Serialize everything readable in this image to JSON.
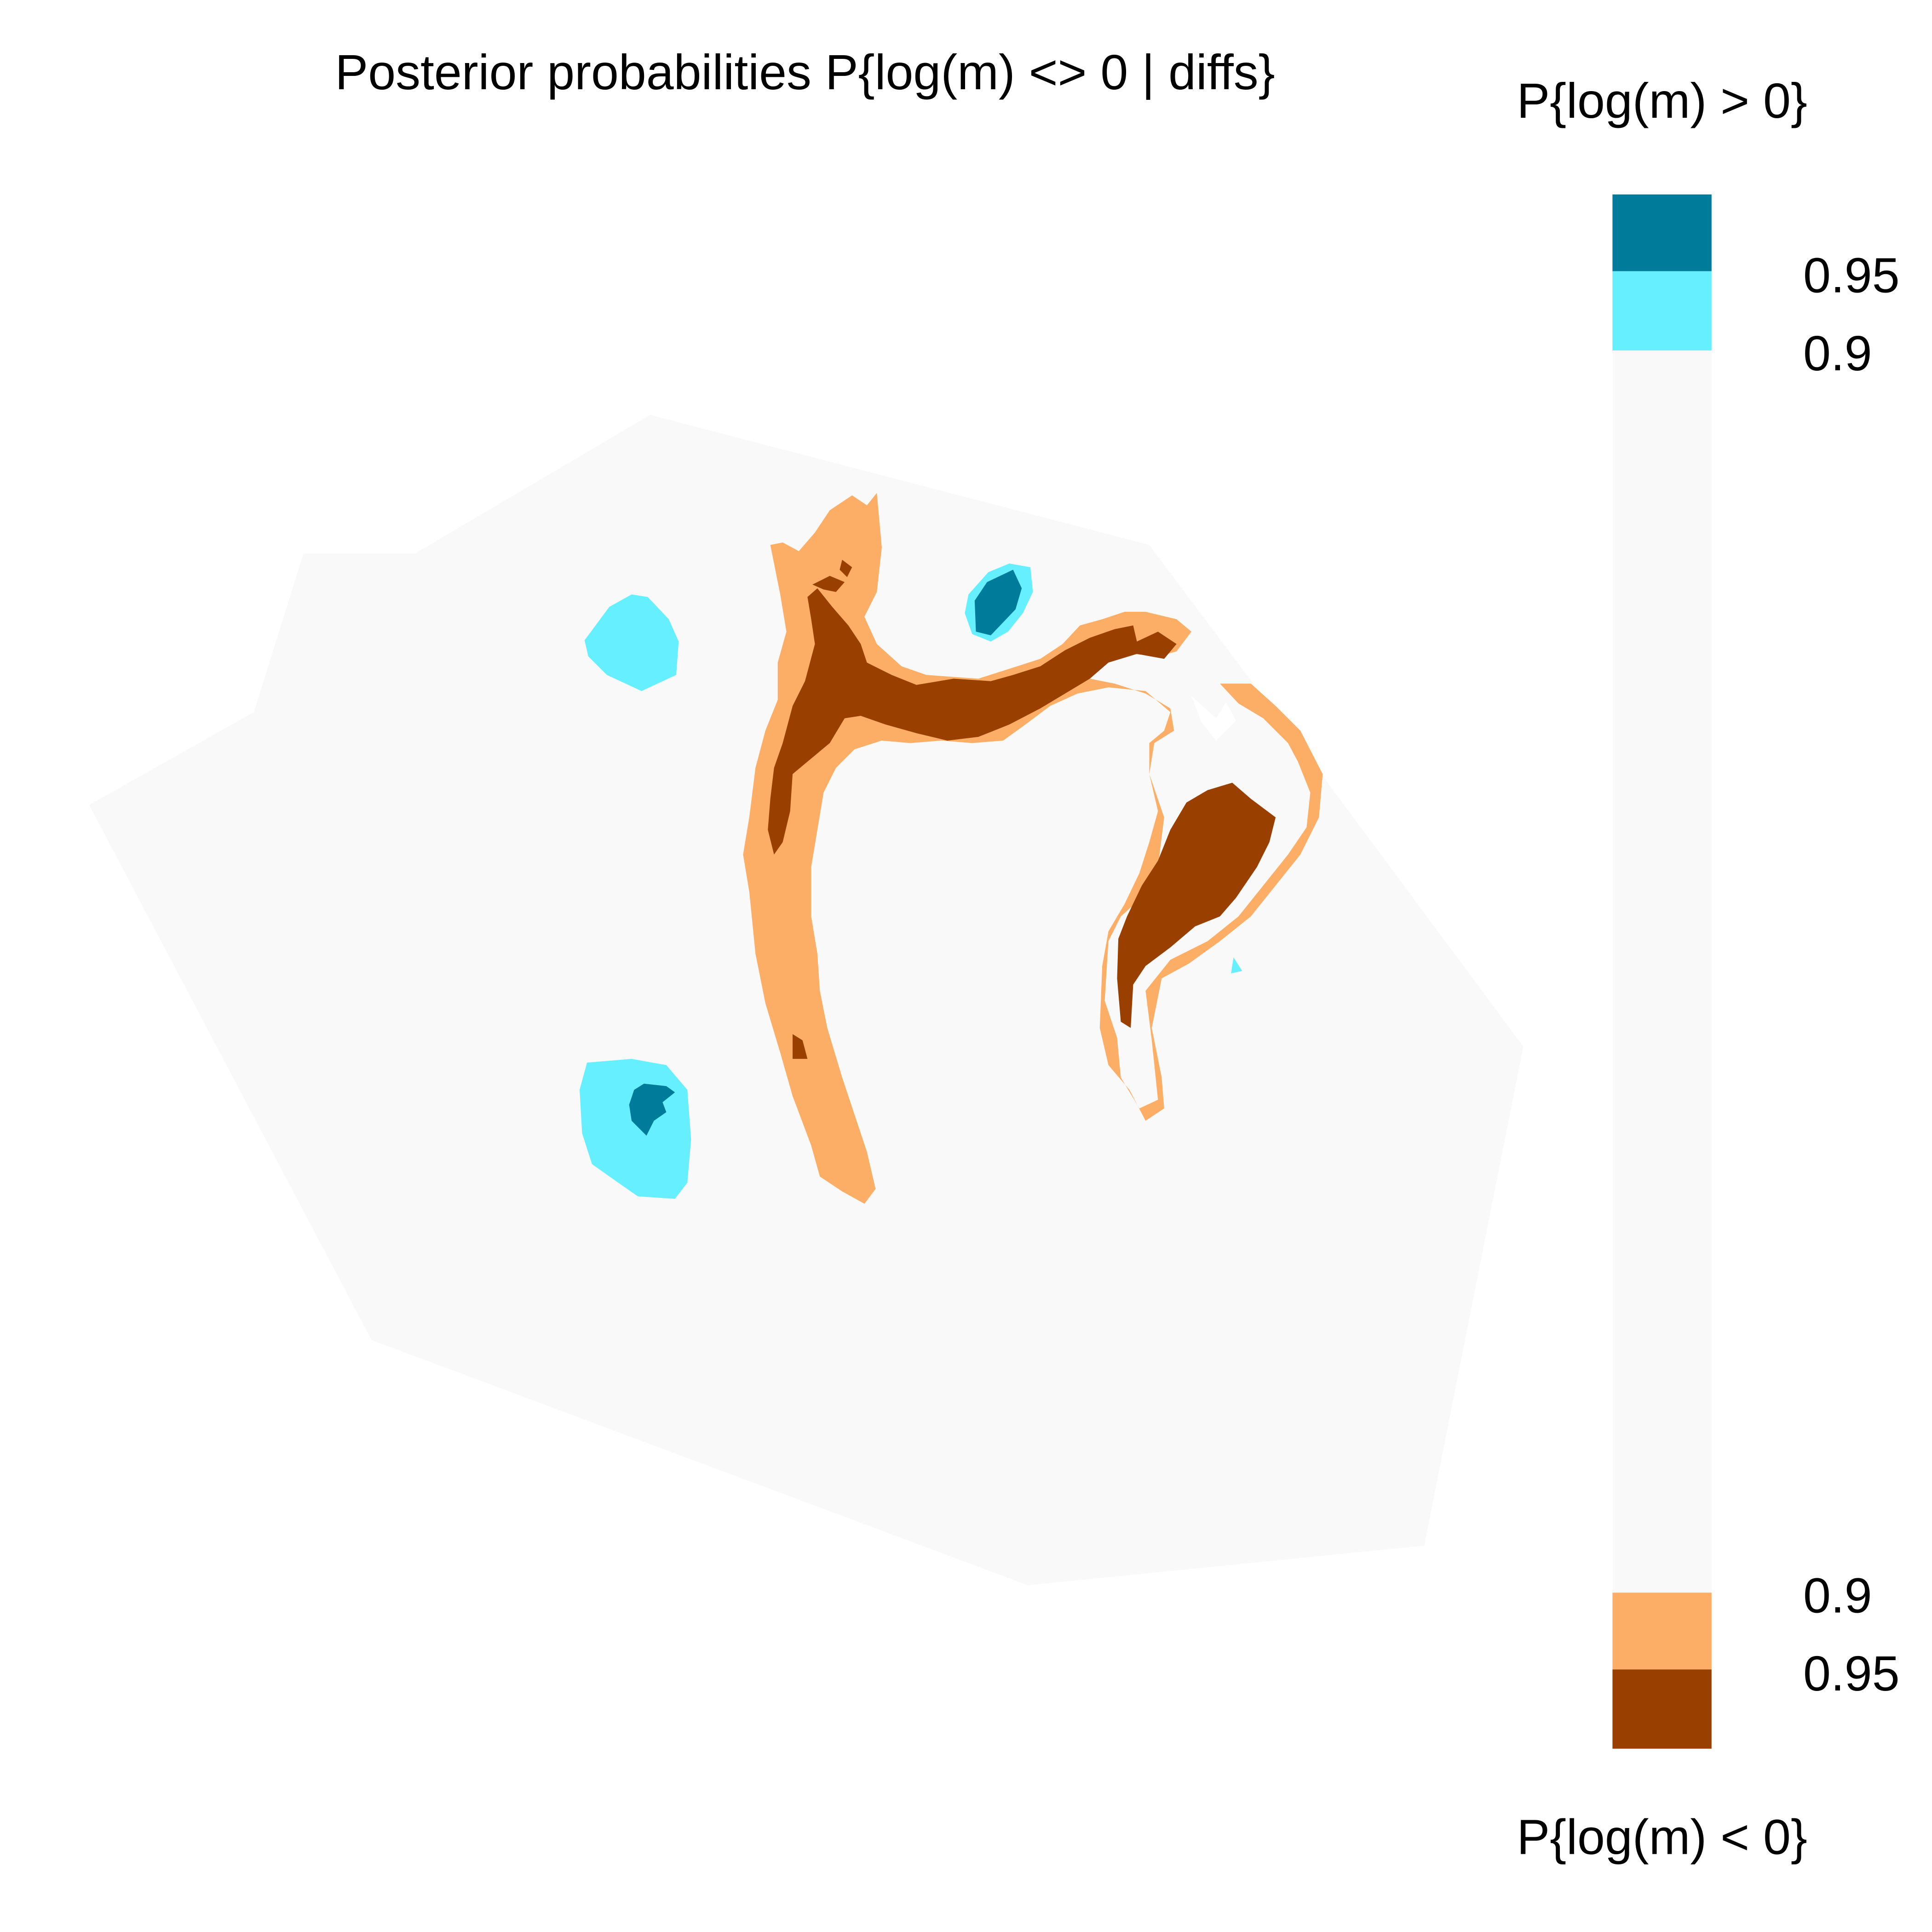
{
  "title": "Posterior probabilities P{log(m) <> 0 | diffs}",
  "legend": {
    "top_title": "P{log(m) > 0}",
    "bottom_title": "P{log(m) < 0}",
    "top_labels": [
      "0.95",
      "0.9"
    ],
    "bottom_labels": [
      "0.9",
      "0.95"
    ]
  },
  "colors": {
    "background": "#ffffff",
    "habitat": "#f9f9f9",
    "pos_95": "#007b99",
    "pos_90": "#66f0ff",
    "neutral": "#f9f9f9",
    "neg_90": "#fdae66",
    "neg_95": "#994000"
  }
}
